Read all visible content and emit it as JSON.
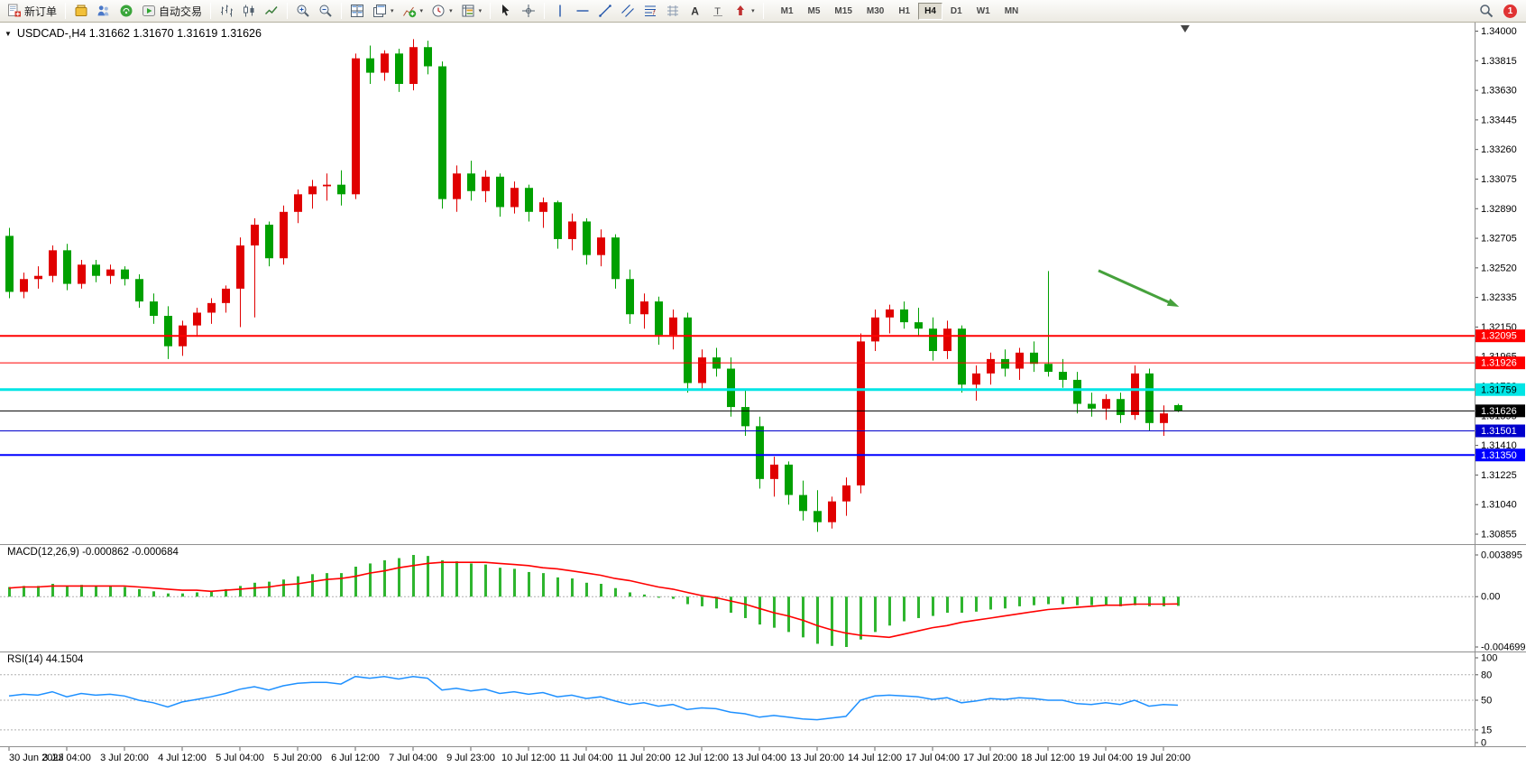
{
  "toolbar": {
    "new_order_label": "新订单",
    "autotrade_label": "自动交易",
    "timeframes": [
      "M1",
      "M5",
      "M15",
      "M30",
      "H1",
      "H4",
      "D1",
      "W1",
      "MN"
    ],
    "active_timeframe": "H4",
    "notification_count": "1",
    "icons": [
      "new-order-icon",
      "symbols-icon",
      "market-watch-icon",
      "signals-icon",
      "autotrade-icon",
      "bar-chart-icon",
      "candlestick-icon",
      "line-chart-icon",
      "zoom-in-icon",
      "zoom-out-icon",
      "tile-windows-icon",
      "cascade-windows-icon",
      "indicators-icon",
      "periods-icon",
      "templates-icon",
      "cursor-icon",
      "crosshair-icon",
      "vertical-line-icon",
      "horizontal-line-icon",
      "trendline-icon",
      "channel-icon",
      "fibonacci-icon",
      "text-icon",
      "label-icon",
      "arrows-icon",
      "search-icon",
      "notification-badge"
    ]
  },
  "chart_data": [
    {
      "type": "candlestick",
      "symbol": "USDCAD-",
      "timeframe": "H4",
      "ohlc": {
        "open": "1.31662",
        "high": "1.31670",
        "low": "1.31619",
        "close": "1.31626"
      },
      "ylim": [
        1.30855,
        1.34
      ],
      "y_ticks": [
        "1.34000",
        "1.33815",
        "1.33630",
        "1.33445",
        "1.33260",
        "1.33075",
        "1.32890",
        "1.32705",
        "1.32520",
        "1.32335",
        "1.32150",
        "1.31965",
        "1.31780",
        "1.31595",
        "1.31410",
        "1.31225",
        "1.31040",
        "1.30855"
      ],
      "colors": {
        "bull": "#e00000",
        "bear": "#00a000"
      },
      "hlines": [
        {
          "value": 1.32095,
          "label": "1.32095",
          "color": "#ff0000",
          "width": 2,
          "label_text": "#ffffff"
        },
        {
          "value": 1.31926,
          "label": "1.31926",
          "color": "#ff0000",
          "width": 1,
          "label_text": "#ffffff"
        },
        {
          "value": 1.31759,
          "label": "1.31759",
          "color": "#00e5e5",
          "width": 3,
          "label_text": "#000000"
        },
        {
          "value": 1.31626,
          "label": "1.31626",
          "color": "#000000",
          "width": 1,
          "label_text": "#ffffff"
        },
        {
          "value": 1.31501,
          "label": "1.31501",
          "color": "#0000cc",
          "width": 1,
          "label_text": "#ffffff"
        },
        {
          "value": 1.3135,
          "label": "1.31350",
          "color": "#0000ff",
          "width": 2,
          "label_text": "#ffffff"
        }
      ],
      "arrow": {
        "from": {
          "bar": 75.5,
          "price": 1.32503
        },
        "to": {
          "bar": 80.8,
          "price": 1.32288
        },
        "color": "#46a13c"
      },
      "shift_marker_bar": 81.5,
      "x_labels": [
        "30 Jun 2023",
        "3 Jul 04:00",
        "3 Jul 20:00",
        "4 Jul 12:00",
        "5 Jul 04:00",
        "5 Jul 20:00",
        "6 Jul 12:00",
        "7 Jul 04:00",
        "9 Jul 23:00",
        "10 Jul 12:00",
        "11 Jul 04:00",
        "11 Jul 20:00",
        "12 Jul 12:00",
        "13 Jul 04:00",
        "13 Jul 20:00",
        "14 Jul 12:00",
        "17 Jul 04:00",
        "17 Jul 20:00",
        "18 Jul 12:00",
        "19 Jul 04:00",
        "19 Jul 20:00"
      ],
      "candles": [
        [
          1.3272,
          1.3277,
          1.3233,
          1.3237
        ],
        [
          1.3237,
          1.3249,
          1.3233,
          1.3245
        ],
        [
          1.3245,
          1.3253,
          1.3239,
          1.3247
        ],
        [
          1.3247,
          1.3266,
          1.3243,
          1.3263
        ],
        [
          1.3263,
          1.3267,
          1.3238,
          1.3242
        ],
        [
          1.3242,
          1.3257,
          1.3239,
          1.3254
        ],
        [
          1.3254,
          1.3257,
          1.3243,
          1.3247
        ],
        [
          1.3247,
          1.3254,
          1.3242,
          1.3251
        ],
        [
          1.3251,
          1.3253,
          1.3241,
          1.3245
        ],
        [
          1.3245,
          1.3248,
          1.3227,
          1.3231
        ],
        [
          1.3231,
          1.3236,
          1.3217,
          1.3222
        ],
        [
          1.3222,
          1.3228,
          1.3195,
          1.3203
        ],
        [
          1.3203,
          1.3219,
          1.3197,
          1.3216
        ],
        [
          1.3216,
          1.3227,
          1.3209,
          1.3224
        ],
        [
          1.3224,
          1.3233,
          1.3217,
          1.323
        ],
        [
          1.323,
          1.3241,
          1.3224,
          1.3239
        ],
        [
          1.3239,
          1.3271,
          1.3215,
          1.3266
        ],
        [
          1.3266,
          1.3283,
          1.3221,
          1.3279
        ],
        [
          1.3279,
          1.3281,
          1.3253,
          1.3258
        ],
        [
          1.3258,
          1.3291,
          1.3254,
          1.3287
        ],
        [
          1.3287,
          1.3301,
          1.328,
          1.3298
        ],
        [
          1.3298,
          1.3307,
          1.3289,
          1.3303
        ],
        [
          1.3303,
          1.3311,
          1.3294,
          1.3304
        ],
        [
          1.3304,
          1.3313,
          1.3291,
          1.3298
        ],
        [
          1.3298,
          1.3386,
          1.3295,
          1.3383
        ],
        [
          1.3383,
          1.3391,
          1.3367,
          1.3374
        ],
        [
          1.3374,
          1.3388,
          1.3369,
          1.3386
        ],
        [
          1.3386,
          1.3389,
          1.3362,
          1.3367
        ],
        [
          1.3367,
          1.3395,
          1.3363,
          1.339
        ],
        [
          1.339,
          1.3394,
          1.3373,
          1.3378
        ],
        [
          1.3378,
          1.3381,
          1.3289,
          1.3295
        ],
        [
          1.3295,
          1.3316,
          1.3287,
          1.3311
        ],
        [
          1.3311,
          1.3319,
          1.3294,
          1.33
        ],
        [
          1.33,
          1.3313,
          1.3293,
          1.3309
        ],
        [
          1.3309,
          1.3311,
          1.3284,
          1.329
        ],
        [
          1.329,
          1.3306,
          1.3286,
          1.3302
        ],
        [
          1.3302,
          1.3304,
          1.3281,
          1.3287
        ],
        [
          1.3287,
          1.3296,
          1.3277,
          1.3293
        ],
        [
          1.3293,
          1.3294,
          1.3264,
          1.327
        ],
        [
          1.327,
          1.3286,
          1.3263,
          1.3281
        ],
        [
          1.3281,
          1.3283,
          1.3254,
          1.326
        ],
        [
          1.326,
          1.3276,
          1.3253,
          1.3271
        ],
        [
          1.3271,
          1.3273,
          1.3239,
          1.3245
        ],
        [
          1.3245,
          1.3251,
          1.3217,
          1.3223
        ],
        [
          1.3223,
          1.3236,
          1.3214,
          1.3231
        ],
        [
          1.3231,
          1.3234,
          1.3204,
          1.321
        ],
        [
          1.321,
          1.3226,
          1.3201,
          1.3221
        ],
        [
          1.3221,
          1.3224,
          1.3174,
          1.318
        ],
        [
          1.318,
          1.3201,
          1.3176,
          1.3196
        ],
        [
          1.3196,
          1.3202,
          1.3184,
          1.3189
        ],
        [
          1.3189,
          1.3196,
          1.3159,
          1.3165
        ],
        [
          1.3165,
          1.3176,
          1.3147,
          1.3153
        ],
        [
          1.3153,
          1.3159,
          1.3114,
          1.312
        ],
        [
          1.312,
          1.3134,
          1.3109,
          1.3129
        ],
        [
          1.3129,
          1.3131,
          1.3104,
          1.311
        ],
        [
          1.311,
          1.3119,
          1.3094,
          1.31
        ],
        [
          1.31,
          1.3113,
          1.3087,
          1.3093
        ],
        [
          1.3093,
          1.3109,
          1.3089,
          1.3106
        ],
        [
          1.3106,
          1.3121,
          1.3097,
          1.3116
        ],
        [
          1.3116,
          1.3211,
          1.3111,
          1.3206
        ],
        [
          1.3206,
          1.3226,
          1.32,
          1.3221
        ],
        [
          1.3221,
          1.3229,
          1.3211,
          1.3226
        ],
        [
          1.3226,
          1.3231,
          1.3214,
          1.3218
        ],
        [
          1.3218,
          1.3227,
          1.3209,
          1.3214
        ],
        [
          1.3214,
          1.3221,
          1.3194,
          1.32
        ],
        [
          1.32,
          1.3219,
          1.3195,
          1.3214
        ],
        [
          1.3214,
          1.3216,
          1.3174,
          1.3179
        ],
        [
          1.3179,
          1.3191,
          1.3169,
          1.3186
        ],
        [
          1.3186,
          1.3199,
          1.3179,
          1.3195
        ],
        [
          1.3195,
          1.3201,
          1.3184,
          1.3189
        ],
        [
          1.3189,
          1.3202,
          1.3182,
          1.3199
        ],
        [
          1.3199,
          1.3206,
          1.3187,
          1.3192
        ],
        [
          1.3192,
          1.325,
          1.3184,
          1.3187
        ],
        [
          1.3187,
          1.3195,
          1.3177,
          1.3182
        ],
        [
          1.3182,
          1.3187,
          1.3161,
          1.3167
        ],
        [
          1.3167,
          1.3174,
          1.3159,
          1.3164
        ],
        [
          1.3164,
          1.3173,
          1.3157,
          1.317
        ],
        [
          1.317,
          1.3174,
          1.3155,
          1.316
        ],
        [
          1.316,
          1.3191,
          1.3157,
          1.3186
        ],
        [
          1.3186,
          1.3189,
          1.315,
          1.3155
        ],
        [
          1.3155,
          1.3166,
          1.3147,
          1.3161
        ],
        [
          1.31662,
          1.3167,
          1.31619,
          1.31626
        ]
      ]
    },
    {
      "type": "macd",
      "label": "MACD(12,26,9)",
      "last_values": [
        "-0.000862",
        "-0.000684"
      ],
      "ylim": [
        -0.004699,
        0.003895
      ],
      "y_ticks": [
        "0.003895",
        "0.00",
        "-0.004699"
      ],
      "colors": {
        "histogram": "#2fb52f",
        "signal": "#ff0000"
      },
      "histogram": [
        0.0009,
        0.001,
        0.001,
        0.0012,
        0.001,
        0.0011,
        0.001,
        0.001,
        0.0009,
        0.0007,
        0.0005,
        0.0003,
        0.0003,
        0.0004,
        0.0005,
        0.0007,
        0.001,
        0.0013,
        0.0014,
        0.0016,
        0.0019,
        0.0021,
        0.0022,
        0.0022,
        0.0028,
        0.0031,
        0.0034,
        0.0036,
        0.003895,
        0.0038,
        0.0034,
        0.0033,
        0.0031,
        0.003,
        0.0027,
        0.0026,
        0.0023,
        0.0022,
        0.0018,
        0.0017,
        0.0013,
        0.0012,
        0.0008,
        0.0004,
        0.0002,
        -0.0001,
        -0.0002,
        -0.0007,
        -0.0009,
        -0.0011,
        -0.0015,
        -0.002,
        -0.0026,
        -0.0029,
        -0.0033,
        -0.0038,
        -0.0044,
        -0.0046,
        -0.004699,
        -0.004,
        -0.0033,
        -0.0027,
        -0.0023,
        -0.002,
        -0.0018,
        -0.0015,
        -0.0015,
        -0.0014,
        -0.0012,
        -0.0011,
        -0.0009,
        -0.0008,
        -0.0007,
        -0.0007,
        -0.0008,
        -0.0008,
        -0.0008,
        -0.0009,
        -0.0008,
        -0.0009,
        -0.0009,
        -0.000862
      ],
      "signal": [
        0.0008,
        0.0009,
        0.0009,
        0.001,
        0.001,
        0.001,
        0.001,
        0.001,
        0.001,
        0.0009,
        0.0008,
        0.0007,
        0.0006,
        0.0006,
        0.0005,
        0.0006,
        0.0007,
        0.0008,
        0.0009,
        0.0011,
        0.0012,
        0.0014,
        0.0016,
        0.0017,
        0.0019,
        0.0022,
        0.0024,
        0.0027,
        0.0029,
        0.0031,
        0.0032,
        0.0032,
        0.0032,
        0.0032,
        0.0031,
        0.003,
        0.0029,
        0.0027,
        0.0026,
        0.0024,
        0.0022,
        0.002,
        0.0017,
        0.0015,
        0.0012,
        0.0009,
        0.0007,
        0.0004,
        0.0001,
        -0.0001,
        -0.0004,
        -0.0007,
        -0.0011,
        -0.0015,
        -0.0018,
        -0.0022,
        -0.0027,
        -0.0031,
        -0.0034,
        -0.0036,
        -0.0037,
        -0.0038,
        -0.0035,
        -0.0032,
        -0.0029,
        -0.0027,
        -0.0024,
        -0.0022,
        -0.002,
        -0.0018,
        -0.0016,
        -0.0014,
        -0.0012,
        -0.0011,
        -0.001,
        -0.0009,
        -0.0008,
        -0.0008,
        -0.0007,
        -0.0007,
        -0.0007,
        -0.000684
      ]
    },
    {
      "type": "line",
      "label": "RSI(14)",
      "last_value": "44.1504",
      "ylim": [
        0,
        100
      ],
      "levels": [
        80,
        50,
        15
      ],
      "y_ticks": [
        "100",
        "80",
        "50",
        "15",
        "0"
      ],
      "color": "#1e90ff",
      "values": [
        55,
        57,
        56,
        60,
        54,
        58,
        56,
        57,
        55,
        50,
        47,
        42,
        48,
        51,
        54,
        58,
        63,
        66,
        62,
        67,
        70,
        71,
        71,
        69,
        78,
        76,
        78,
        75,
        78,
        76,
        62,
        64,
        61,
        63,
        58,
        60,
        57,
        59,
        54,
        56,
        52,
        54,
        49,
        45,
        47,
        43,
        45,
        39,
        41,
        40,
        36,
        34,
        30,
        32,
        30,
        28,
        27,
        29,
        31,
        50,
        55,
        56,
        55,
        54,
        51,
        53,
        47,
        49,
        52,
        51,
        53,
        52,
        50,
        50,
        46,
        45,
        47,
        45,
        50,
        43,
        45,
        44.15
      ]
    }
  ]
}
